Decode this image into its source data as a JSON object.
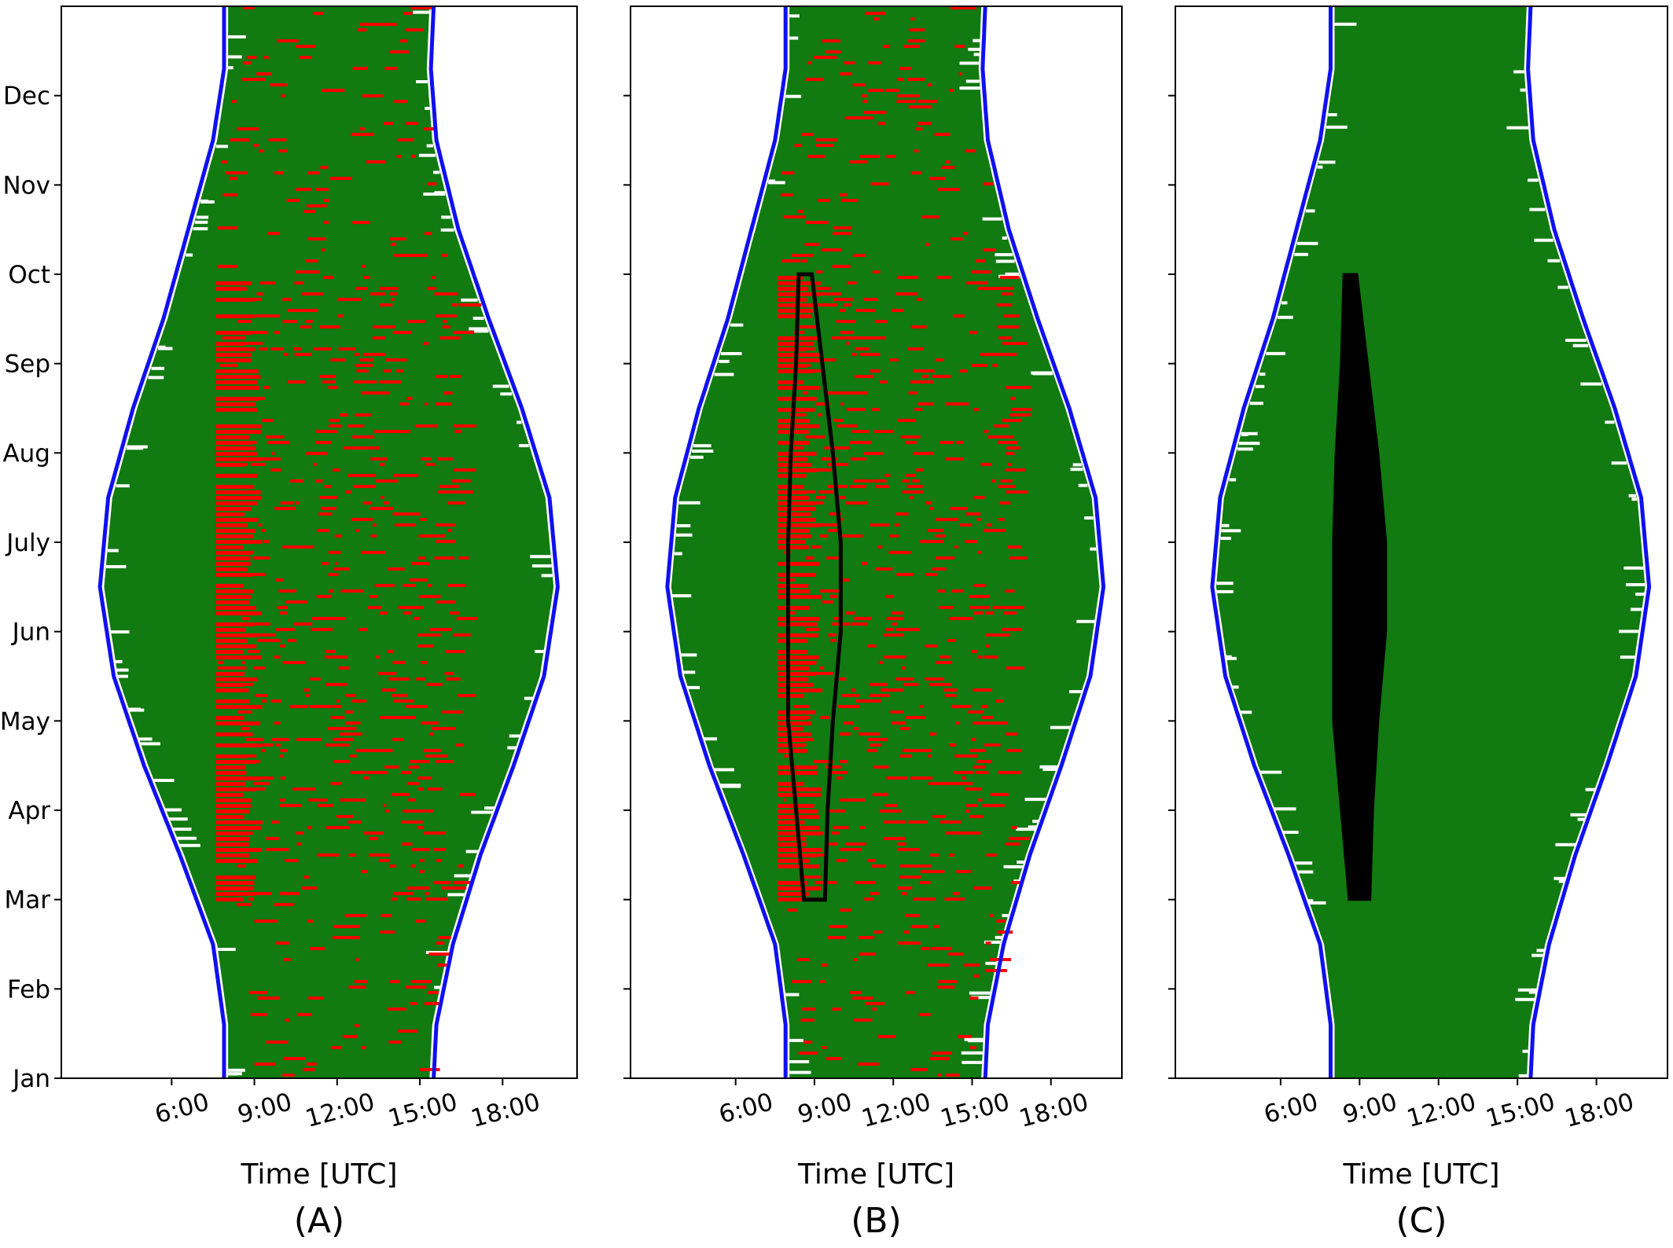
{
  "chart_data": [
    {
      "type": "scatter",
      "panel_label": "(A)",
      "xlabel": "Time [UTC]",
      "ylabel": "",
      "x_ticks": [
        "6:00",
        "9:00",
        "12:00",
        "15:00",
        "18:00"
      ],
      "x_tick_values_hours": [
        6,
        9,
        12,
        15,
        18
      ],
      "xlim_hours": [
        2.0,
        20.7
      ],
      "y_ticks": [
        "Jan",
        "Feb",
        "Mar",
        "Apr",
        "May",
        "Jun",
        "July",
        "Aug",
        "Sep",
        "Oct",
        "Nov",
        "Dec"
      ],
      "y_tick_values_month": [
        1,
        2,
        3,
        4,
        5,
        6,
        7,
        8,
        9,
        10,
        11,
        12
      ],
      "ylim_month": [
        1,
        13
      ],
      "series": [
        {
          "role": "daylight_samples",
          "color": "#117a11"
        },
        {
          "role": "flagged_samples",
          "color": "#ff0000",
          "time_band_hours": [
            7.6,
            9.3
          ],
          "month_range": [
            3.0,
            10.0
          ]
        },
        {
          "role": "sun_curve",
          "color": "#1010ee",
          "sunrise_hours": [
            7.9,
            7.9,
            7.5,
            6.3,
            5.0,
            3.9,
            3.4,
            3.7,
            4.6,
            5.7,
            6.6,
            7.5,
            7.9,
            7.9
          ],
          "sunset_hours": [
            15.5,
            15.6,
            16.2,
            17.2,
            18.4,
            19.5,
            20.0,
            19.7,
            18.7,
            17.5,
            16.4,
            15.6,
            15.4,
            15.5
          ],
          "month": [
            1,
            1.6,
            2.5,
            3.5,
            4.5,
            5.5,
            6.5,
            7.5,
            8.5,
            9.5,
            10.5,
            11.5,
            12.3,
            13
          ]
        }
      ]
    },
    {
      "type": "scatter",
      "panel_label": "(B)",
      "xlabel": "Time [UTC]",
      "ylabel": "",
      "x_ticks": [
        "6:00",
        "9:00",
        "12:00",
        "15:00",
        "18:00"
      ],
      "x_tick_values_hours": [
        6,
        9,
        12,
        15,
        18
      ],
      "xlim_hours": [
        2.0,
        20.7
      ],
      "y_ticks": [
        "Jan",
        "Feb",
        "Mar",
        "Apr",
        "May",
        "Jun",
        "July",
        "Aug",
        "Sep",
        "Oct",
        "Nov",
        "Dec"
      ],
      "y_tick_values_month": [
        1,
        2,
        3,
        4,
        5,
        6,
        7,
        8,
        9,
        10,
        11,
        12
      ],
      "ylim_month": [
        1,
        13
      ],
      "series": [
        {
          "role": "daylight_samples",
          "color": "#117a11"
        },
        {
          "role": "flagged_samples",
          "color": "#ff0000",
          "time_band_hours": [
            7.6,
            9.3
          ],
          "month_range": [
            3.0,
            10.0
          ]
        },
        {
          "role": "sun_curve",
          "color": "#1010ee",
          "sunrise_hours": [
            7.9,
            7.9,
            7.5,
            6.3,
            5.0,
            3.9,
            3.4,
            3.7,
            4.6,
            5.7,
            6.6,
            7.5,
            7.9,
            7.9
          ],
          "sunset_hours": [
            15.5,
            15.6,
            16.2,
            17.2,
            18.4,
            19.5,
            20.0,
            19.7,
            18.7,
            17.5,
            16.4,
            15.6,
            15.4,
            15.5
          ],
          "month": [
            1,
            1.6,
            2.5,
            3.5,
            4.5,
            5.5,
            6.5,
            7.5,
            8.5,
            9.5,
            10.5,
            11.5,
            12.3,
            13
          ]
        },
        {
          "role": "region_outline",
          "color": "#000000",
          "polygon_hours_month": [
            [
              8.4,
              10.0
            ],
            [
              8.9,
              10.0
            ],
            [
              9.3,
              9.0
            ],
            [
              9.7,
              8.0
            ],
            [
              10.0,
              7.0
            ],
            [
              10.0,
              6.0
            ],
            [
              9.7,
              5.0
            ],
            [
              9.5,
              4.0
            ],
            [
              9.4,
              3.0
            ],
            [
              8.6,
              3.0
            ],
            [
              8.3,
              4.0
            ],
            [
              8.0,
              5.0
            ],
            [
              8.0,
              6.0
            ],
            [
              8.0,
              7.0
            ],
            [
              8.1,
              8.0
            ],
            [
              8.3,
              9.0
            ]
          ]
        }
      ]
    },
    {
      "type": "scatter",
      "panel_label": "(C)",
      "xlabel": "Time [UTC]",
      "ylabel": "",
      "x_ticks": [
        "6:00",
        "9:00",
        "12:00",
        "15:00",
        "18:00"
      ],
      "x_tick_values_hours": [
        6,
        9,
        12,
        15,
        18
      ],
      "xlim_hours": [
        2.0,
        20.7
      ],
      "y_ticks": [
        "Jan",
        "Feb",
        "Mar",
        "Apr",
        "May",
        "Jun",
        "July",
        "Aug",
        "Sep",
        "Oct",
        "Nov",
        "Dec"
      ],
      "y_tick_values_month": [
        1,
        2,
        3,
        4,
        5,
        6,
        7,
        8,
        9,
        10,
        11,
        12
      ],
      "ylim_month": [
        1,
        13
      ],
      "series": [
        {
          "role": "daylight_samples",
          "color": "#117a11"
        },
        {
          "role": "sun_curve",
          "color": "#1010ee",
          "sunrise_hours": [
            7.9,
            7.9,
            7.5,
            6.3,
            5.0,
            3.9,
            3.4,
            3.7,
            4.6,
            5.7,
            6.6,
            7.5,
            7.9,
            7.9
          ],
          "sunset_hours": [
            15.5,
            15.6,
            16.2,
            17.2,
            18.4,
            19.5,
            20.0,
            19.7,
            18.7,
            17.5,
            16.4,
            15.6,
            15.4,
            15.5
          ],
          "month": [
            1,
            1.6,
            2.5,
            3.5,
            4.5,
            5.5,
            6.5,
            7.5,
            8.5,
            9.5,
            10.5,
            11.5,
            12.3,
            13
          ]
        },
        {
          "role": "region_fill",
          "color": "#000000",
          "polygon_hours_month": [
            [
              8.4,
              10.0
            ],
            [
              8.9,
              10.0
            ],
            [
              9.3,
              9.0
            ],
            [
              9.7,
              8.0
            ],
            [
              10.0,
              7.0
            ],
            [
              10.0,
              6.0
            ],
            [
              9.7,
              5.0
            ],
            [
              9.5,
              4.0
            ],
            [
              9.4,
              3.0
            ],
            [
              8.6,
              3.0
            ],
            [
              8.3,
              4.0
            ],
            [
              8.0,
              5.0
            ],
            [
              8.0,
              6.0
            ],
            [
              8.0,
              7.0
            ],
            [
              8.1,
              8.0
            ],
            [
              8.3,
              9.0
            ]
          ]
        }
      ]
    }
  ],
  "colors": {
    "green": "#117a11",
    "red": "#ff0000",
    "blue": "#1010ee",
    "black": "#000000"
  }
}
